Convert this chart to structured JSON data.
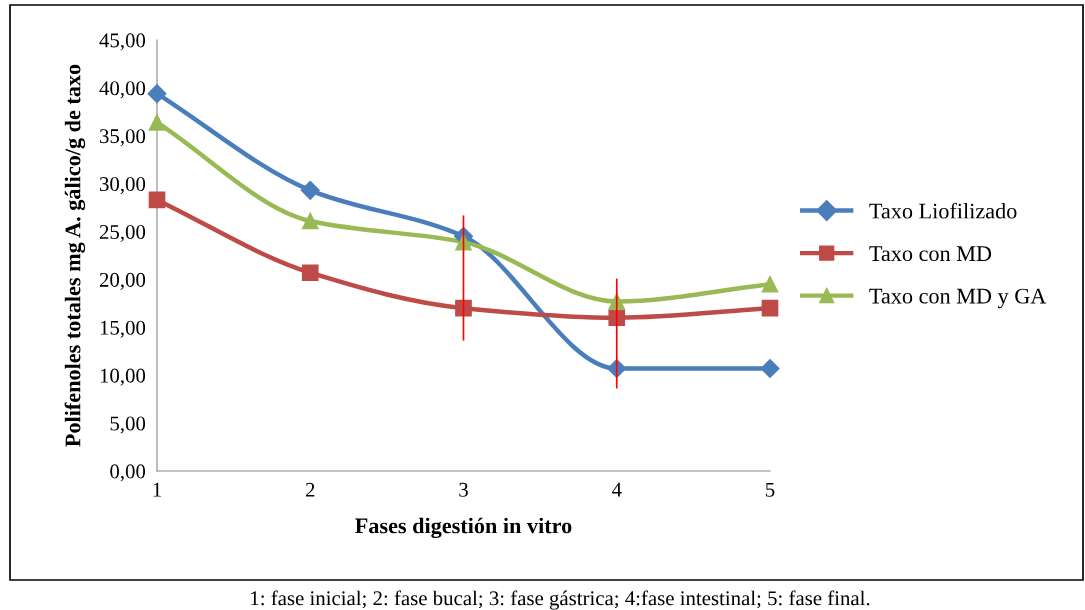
{
  "chart_data": {
    "type": "line",
    "xlabel": "Fases digestión in vitro",
    "ylabel": "Polifenoles totales mg A. gálico/g de taxo",
    "x": [
      1,
      2,
      3,
      4,
      5
    ],
    "xlim": [
      1,
      5
    ],
    "xticks": [
      1,
      2,
      3,
      4,
      5
    ],
    "ylim": [
      0,
      45
    ],
    "yticks": [
      {
        "value": 0,
        "label": "0,00"
      },
      {
        "value": 5,
        "label": "5,00"
      },
      {
        "value": 10,
        "label": "10,00"
      },
      {
        "value": 15,
        "label": "15,00"
      },
      {
        "value": 20,
        "label": "20,00"
      },
      {
        "value": 25,
        "label": "25,00"
      },
      {
        "value": 30,
        "label": "30,00"
      },
      {
        "value": 35,
        "label": "35,00"
      },
      {
        "value": 40,
        "label": "40,00"
      },
      {
        "value": 45,
        "label": "45,00"
      }
    ],
    "series": [
      {
        "name": "Taxo Liofilizado",
        "color": "#4a7ebb",
        "marker": "diamond",
        "values": [
          39.4,
          29.3,
          24.5,
          10.7,
          10.7
        ]
      },
      {
        "name": "Taxo con MD",
        "color": "#be4b48",
        "marker": "square",
        "values": [
          28.3,
          20.7,
          17.0,
          16.0,
          17.0
        ],
        "errors": [
          null,
          null,
          [
            13.7,
            26.6
          ],
          [
            8.7,
            20.0
          ],
          null
        ]
      },
      {
        "name": "Taxo con MD y GA",
        "color": "#98b954",
        "marker": "triangle",
        "values": [
          36.4,
          26.1,
          23.9,
          17.7,
          19.5
        ]
      }
    ],
    "legend": "right",
    "grid": false,
    "annotations": [
      "1: fase inicial; 2: fase bucal; 3: fase gástrica; 4:fase intestinal; 5: fase final."
    ]
  }
}
